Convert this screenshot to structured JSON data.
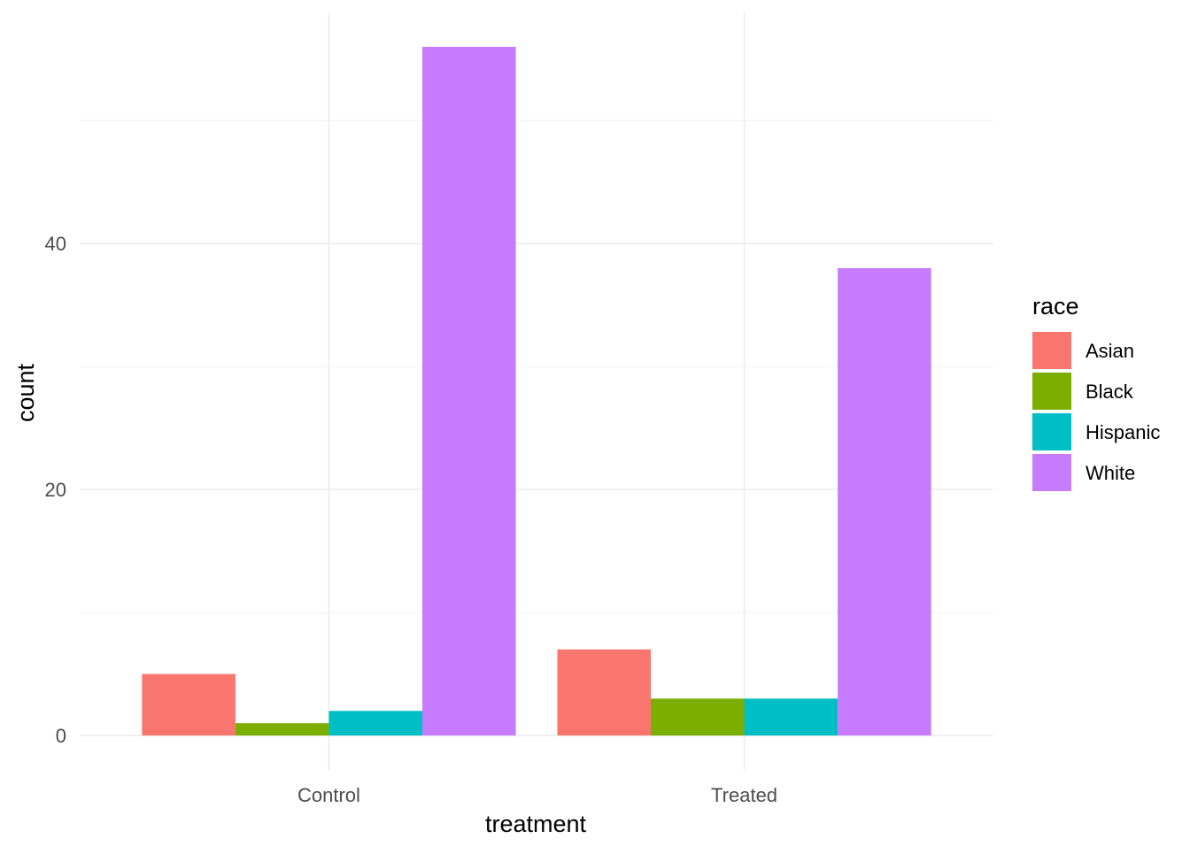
{
  "chart_data": {
    "type": "bar",
    "categories": [
      "Control",
      "Treated"
    ],
    "series": [
      {
        "name": "Asian",
        "values": [
          5,
          7
        ],
        "color": "#F8766D"
      },
      {
        "name": "Black",
        "values": [
          1,
          3
        ],
        "color": "#7CAE00"
      },
      {
        "name": "Hispanic",
        "values": [
          2,
          3
        ],
        "color": "#00BFC4"
      },
      {
        "name": "White",
        "values": [
          56,
          38
        ],
        "color": "#C77CFF"
      }
    ],
    "xlabel": "treatment",
    "ylabel": "count",
    "legend_title": "race",
    "legend_position": "right",
    "yticks": [
      0,
      20,
      40
    ],
    "ylim": [
      -2.8,
      58.8
    ],
    "grid": true
  }
}
